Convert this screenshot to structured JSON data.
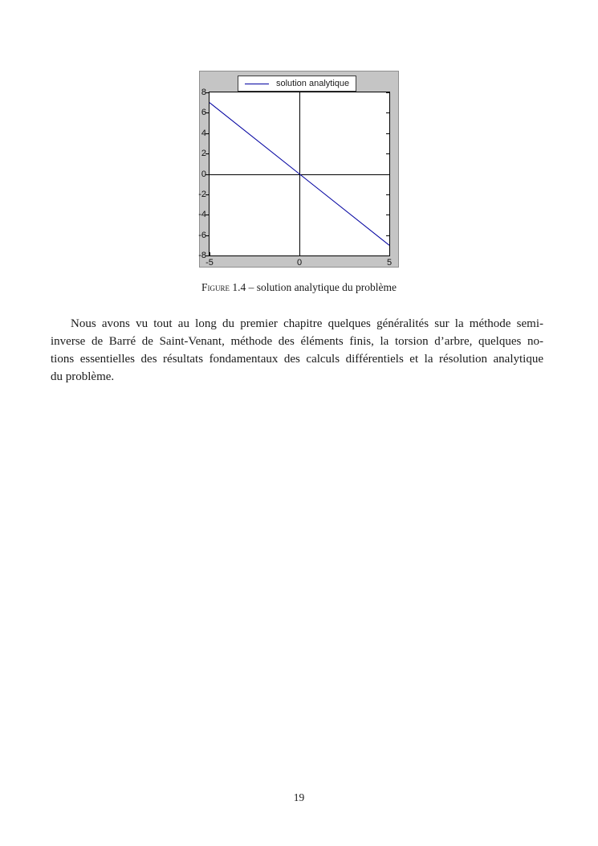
{
  "figure_caption": {
    "label": "Figure 1.4",
    "rest": "– solution analytique du problème"
  },
  "chart_data": {
    "type": "line",
    "title": "",
    "xlabel": "",
    "ylabel": "",
    "xlim": [
      -5,
      5
    ],
    "ylim": [
      -8,
      8
    ],
    "xticks": [
      -5,
      0,
      5
    ],
    "yticks": [
      8,
      6,
      4,
      2,
      0,
      -2,
      -4,
      -6,
      -8
    ],
    "grid": false,
    "axes_through_origin": true,
    "legend_position": "top-center",
    "figure_background": "#c5c5c5",
    "plot_background": "#ffffff",
    "series": [
      {
        "name": "solution analytique",
        "color": "#0000a0",
        "points": [
          [
            -5,
            7
          ],
          [
            5,
            -7
          ]
        ]
      }
    ]
  },
  "paragraph": {
    "lines": [
      "Nous avons vu tout au long du premier chapitre quelques généralités sur la méthode semi-",
      "inverse de Barré de Saint-Venant, méthode des éléments finis, la torsion d’arbre, quelques no-",
      "tions essentielles des résultats fondamentaux des calculs différentiels et la résolution analytique",
      "du problème."
    ]
  },
  "page_number": "19"
}
